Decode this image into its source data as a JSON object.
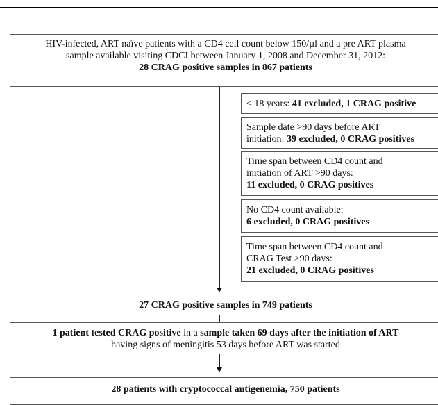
{
  "top_box": {
    "line1": "HIV-infected, ART naïve patients with a CD4 cell count below 150/µl and a pre ART plasma",
    "line2": "sample available visiting CDCI between January 1, 2008 and December 31, 2012:",
    "line3": "28 CRAG positive samples in 867 patients"
  },
  "exclusions": [
    {
      "line1": "< 18 years: ",
      "line1_bold": "41 excluded, 1 CRAG positive"
    },
    {
      "line1": "Sample date >90 days before ART",
      "line2": "initiation: ",
      "line2_bold": "39 excluded, 0 CRAG positives"
    },
    {
      "line1": "Time span between CD4 count and",
      "line2": "initiation of ART >90 days:",
      "line3_bold": "11 excluded, 0 CRAG positives"
    },
    {
      "line1": "No CD4 count available:",
      "line2_bold": "6 excluded, 0 CRAG positives"
    },
    {
      "line1": "Time span between CD4 count and",
      "line2": "CRAG Test >90 days:",
      "line3_bold": "21 excluded, 0 CRAG positives"
    }
  ],
  "middle_box": {
    "text": "27 CRAG positive samples in 749 patients"
  },
  "addition_box": {
    "bold1": "1 patient tested CRAG positive",
    "normal1": " in a ",
    "bold2": "sample taken 69 days after the initiation of ART",
    "line2": "having signs of meningitis 53 days before ART was started"
  },
  "bottom_box": {
    "text": "28 patients with cryptococcal antigenemia, 750 patients"
  }
}
